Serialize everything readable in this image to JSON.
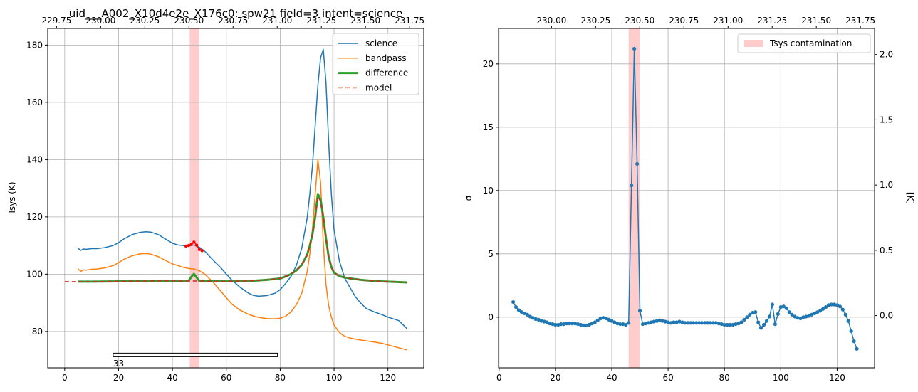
{
  "chart_data": [
    {
      "type": "line",
      "title": "uid___A002_X10d4e2e_X176c0: spw21 field=3 intent=science",
      "ylabel": "Tsys (K)",
      "xlim": [
        -6.3,
        133.3
      ],
      "ylim": [
        67.3,
        185.8
      ],
      "x_ticks": [
        0,
        20,
        40,
        60,
        80,
        100,
        120
      ],
      "y_ticks": [
        80,
        100,
        120,
        140,
        160,
        180
      ],
      "top_axis": {
        "xlim": [
          229.7,
          231.83
        ],
        "ticks": [
          229.75,
          230.0,
          230.25,
          230.5,
          230.75,
          231.0,
          231.25,
          231.5,
          231.75
        ],
        "tick_labels": [
          "229.75",
          "230.00",
          "230.25",
          "230.50",
          "230.75",
          "231.00",
          "231.25",
          "231.50",
          "231.75"
        ]
      },
      "grid": true,
      "legend_position": "top-right",
      "contamination_band": [
        46.4,
        50.0
      ],
      "colors": {
        "science": "#1f77b4",
        "bandpass": "#ff7f0e",
        "difference": "#2ca02c",
        "model": "#d62728",
        "band": "#ffcccc",
        "flagged": "#ff0000"
      },
      "series": [
        {
          "name": "science",
          "x": [
            5,
            6,
            7,
            8,
            10,
            12,
            15,
            18,
            20,
            22,
            25,
            28,
            30,
            32,
            35,
            37,
            40,
            42,
            44,
            46,
            48,
            50,
            52,
            55,
            58,
            60,
            62,
            65,
            68,
            70,
            72,
            75,
            78,
            80,
            82,
            84,
            86,
            88,
            90,
            91,
            92,
            93,
            94,
            95,
            96,
            97,
            98,
            99,
            100,
            102,
            104,
            106,
            108,
            110,
            112,
            115,
            118,
            120,
            122,
            124,
            126,
            127
          ],
          "y": [
            109.0,
            108.3,
            108.8,
            108.7,
            108.9,
            108.9,
            109.3,
            110.0,
            111.0,
            112.3,
            113.8,
            114.6,
            114.8,
            114.7,
            113.7,
            112.5,
            110.8,
            110.2,
            110.0,
            109.8,
            110.2,
            109.4,
            108.0,
            105.0,
            102.2,
            100.0,
            98.0,
            95.5,
            93.5,
            92.6,
            92.3,
            92.5,
            93.3,
            94.6,
            96.7,
            99.2,
            103.0,
            109.0,
            119.5,
            128.0,
            138.0,
            152.0,
            166.0,
            175.5,
            178.5,
            167.0,
            146.0,
            128.0,
            115.5,
            104.5,
            98.5,
            95.2,
            92.0,
            89.8,
            88.0,
            86.8,
            85.8,
            85.0,
            84.4,
            83.8,
            82.0,
            81.0
          ]
        },
        {
          "name": "bandpass",
          "x": [
            5,
            6,
            7,
            8,
            10,
            12,
            15,
            18,
            20,
            22,
            25,
            28,
            30,
            32,
            35,
            37,
            40,
            42,
            44,
            46,
            48,
            50,
            52,
            55,
            58,
            60,
            62,
            65,
            68,
            70,
            72,
            75,
            78,
            80,
            82,
            84,
            86,
            88,
            90,
            91,
            92,
            93,
            94,
            95,
            96,
            97,
            98,
            99,
            100,
            102,
            104,
            106,
            108,
            110,
            112,
            115,
            118,
            120,
            122,
            124,
            126,
            127
          ],
          "y": [
            101.8,
            101.0,
            101.5,
            101.4,
            101.7,
            101.8,
            102.2,
            103.0,
            104.0,
            105.2,
            106.4,
            107.1,
            107.2,
            107.0,
            106.0,
            105.0,
            103.6,
            103.0,
            102.4,
            102.0,
            101.8,
            101.2,
            100.0,
            97.3,
            94.0,
            91.8,
            89.6,
            87.5,
            86.1,
            85.4,
            84.9,
            84.5,
            84.4,
            84.6,
            85.3,
            86.8,
            89.3,
            93.3,
            100.8,
            107.0,
            116.0,
            128.0,
            140.0,
            132.0,
            111.0,
            96.5,
            89.0,
            85.0,
            82.2,
            79.6,
            78.3,
            77.7,
            77.3,
            77.0,
            76.7,
            76.3,
            75.8,
            75.3,
            74.8,
            74.3,
            73.8,
            73.6
          ]
        },
        {
          "name": "difference",
          "x": [
            5,
            10,
            20,
            30,
            40,
            45,
            46,
            47,
            48,
            49,
            50,
            52,
            55,
            60,
            70,
            75,
            80,
            82,
            84,
            86,
            88,
            90,
            91,
            92,
            93,
            94,
            95,
            96,
            97,
            98,
            99,
            100,
            102,
            104,
            106,
            110,
            115,
            120,
            125,
            127
          ],
          "y": [
            97.4,
            97.4,
            97.5,
            97.6,
            97.7,
            97.6,
            97.7,
            99.0,
            100.1,
            98.8,
            97.6,
            97.5,
            97.5,
            97.5,
            97.7,
            98.0,
            98.5,
            99.2,
            100.0,
            101.3,
            103.2,
            106.8,
            110.0,
            114.0,
            120.0,
            128.0,
            126.0,
            120.0,
            112.5,
            106.0,
            102.5,
            100.5,
            99.3,
            98.8,
            98.5,
            98.0,
            97.6,
            97.4,
            97.2,
            97.1
          ]
        },
        {
          "name": "model",
          "x": [
            0,
            5,
            10,
            20,
            30,
            40,
            45,
            50,
            55,
            60,
            70,
            75,
            80,
            82,
            84,
            86,
            88,
            90,
            91,
            92,
            93,
            94,
            95,
            96,
            97,
            98,
            99,
            100,
            102,
            104,
            106,
            110,
            115,
            120,
            125,
            127
          ],
          "y": [
            97.4,
            97.4,
            97.4,
            97.5,
            97.6,
            97.7,
            97.6,
            97.6,
            97.5,
            97.5,
            97.7,
            98.0,
            98.5,
            99.2,
            100.0,
            101.3,
            103.2,
            106.8,
            110.0,
            114.0,
            120.0,
            127.0,
            125.5,
            120.0,
            112.5,
            106.0,
            102.5,
            100.5,
            99.3,
            98.8,
            98.5,
            98.0,
            97.6,
            97.4,
            97.2,
            97.1
          ]
        }
      ],
      "flagged_points": {
        "x": [
          45,
          46,
          47,
          48,
          49,
          50,
          51
        ],
        "y": [
          109.8,
          110.0,
          110.4,
          111.2,
          110.1,
          108.6,
          108.2
        ]
      },
      "annotation": {
        "label": "33",
        "x_start": 18,
        "x_end": 79,
        "y": 71.8
      }
    },
    {
      "type": "line",
      "ylabel": "σ",
      "ylabel_right": "[K]",
      "xlim": [
        -0.2,
        133.3
      ],
      "ylim": [
        -4.0,
        22.8
      ],
      "x_ticks": [
        0,
        20,
        40,
        60,
        80,
        100,
        120
      ],
      "y_ticks": [
        0,
        5,
        10,
        15,
        20
      ],
      "right_axis": {
        "ylim": [
          -0.4,
          2.2
        ],
        "ticks": [
          0.0,
          0.5,
          1.0,
          1.5,
          2.0
        ],
        "tick_labels": [
          "0.0",
          "0.5",
          "1.0",
          "1.5",
          "2.0"
        ]
      },
      "top_axis": {
        "xlim": [
          229.7,
          231.83
        ],
        "ticks": [
          230.0,
          230.25,
          230.5,
          230.75,
          231.0,
          231.25,
          231.5,
          231.75
        ],
        "tick_labels": [
          "230.00",
          "230.25",
          "230.50",
          "230.75",
          "231.00",
          "231.25",
          "231.50",
          "231.75"
        ]
      },
      "grid": true,
      "legend_position": "top-right",
      "contamination_band": [
        46.0,
        49.9
      ],
      "colors": {
        "sigma": "#1f77b4",
        "band": "#ffcccc"
      },
      "legend": [
        "Tsys contamination"
      ],
      "series": [
        {
          "name": "",
          "x": [
            5,
            6,
            7,
            8,
            9,
            10,
            11,
            12,
            13,
            14,
            15,
            16,
            17,
            18,
            19,
            20,
            21,
            22,
            23,
            24,
            25,
            26,
            27,
            28,
            29,
            30,
            31,
            32,
            33,
            34,
            35,
            36,
            37,
            38,
            39,
            40,
            41,
            42,
            43,
            44,
            45,
            46,
            47,
            48,
            49,
            50,
            51,
            52,
            53,
            54,
            55,
            56,
            57,
            58,
            59,
            60,
            61,
            62,
            63,
            64,
            65,
            66,
            67,
            68,
            69,
            70,
            71,
            72,
            73,
            74,
            75,
            76,
            77,
            78,
            79,
            80,
            81,
            82,
            83,
            84,
            85,
            86,
            87,
            88,
            89,
            90,
            91,
            92,
            93,
            94,
            95,
            96,
            97,
            98,
            99,
            100,
            101,
            102,
            103,
            104,
            105,
            106,
            107,
            108,
            109,
            110,
            111,
            112,
            113,
            114,
            115,
            116,
            117,
            118,
            119,
            120,
            121,
            122,
            123,
            124,
            125,
            126,
            127
          ],
          "y": [
            1.2,
            0.8,
            0.55,
            0.4,
            0.3,
            0.2,
            0.05,
            -0.05,
            -0.15,
            -0.2,
            -0.3,
            -0.35,
            -0.4,
            -0.5,
            -0.55,
            -0.6,
            -0.6,
            -0.55,
            -0.55,
            -0.5,
            -0.5,
            -0.5,
            -0.5,
            -0.55,
            -0.6,
            -0.65,
            -0.65,
            -0.6,
            -0.5,
            -0.4,
            -0.25,
            -0.1,
            -0.05,
            -0.1,
            -0.2,
            -0.3,
            -0.4,
            -0.5,
            -0.55,
            -0.55,
            -0.6,
            -0.45,
            10.4,
            21.2,
            12.1,
            0.5,
            -0.55,
            -0.5,
            -0.45,
            -0.4,
            -0.35,
            -0.3,
            -0.25,
            -0.3,
            -0.35,
            -0.4,
            -0.45,
            -0.4,
            -0.4,
            -0.35,
            -0.4,
            -0.45,
            -0.45,
            -0.45,
            -0.45,
            -0.45,
            -0.45,
            -0.45,
            -0.45,
            -0.45,
            -0.45,
            -0.45,
            -0.45,
            -0.5,
            -0.55,
            -0.6,
            -0.6,
            -0.6,
            -0.6,
            -0.55,
            -0.5,
            -0.4,
            -0.2,
            0.0,
            0.2,
            0.35,
            0.4,
            -0.4,
            -0.85,
            -0.6,
            -0.3,
            0.05,
            1.0,
            -0.55,
            0.25,
            0.8,
            0.85,
            0.7,
            0.4,
            0.2,
            0.05,
            -0.05,
            -0.1,
            0.0,
            0.05,
            0.1,
            0.2,
            0.3,
            0.4,
            0.5,
            0.65,
            0.8,
            0.95,
            1.0,
            1.0,
            0.95,
            0.85,
            0.6,
            0.2,
            -0.3,
            -1.1,
            -1.9,
            -2.5
          ]
        }
      ]
    }
  ]
}
